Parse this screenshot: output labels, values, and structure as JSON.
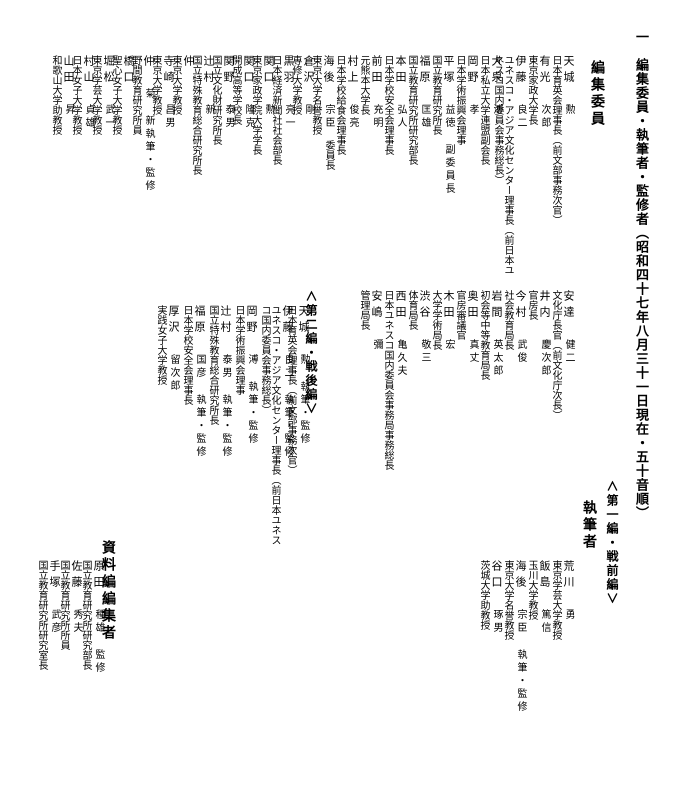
{
  "page_title": "一　編集委員・執筆者・監修者（昭和四十七年八月三十一日現在・五十音順）",
  "sections": {
    "editorial_board": {
      "header": "編集委員"
    },
    "authors": {
      "header": "執筆者"
    },
    "material_editors": {
      "header": "資料編編集者"
    }
  },
  "chair_suffix": "委員長",
  "sub_headers": {
    "prewar": "∧第一編・戦前編∨",
    "postwar": "∧第二編・戦後編∨"
  },
  "right_column": [
    {
      "surname": "天城",
      "given": "勲",
      "affil": "日本育英会理事長（前文部事務次官）"
    },
    {
      "surname": "有光",
      "given": "次郎",
      "affil": "東京家政大学長"
    },
    {
      "surname": "伊藤",
      "given": "良二",
      "affil": "ユネスコ・アジア文化センター理事長\n（前日本ユネスコ国内委員会事務総長）"
    },
    {
      "surname": "大泉",
      "given": "溥",
      "affil": "日本私立大学連盟副会長"
    },
    {
      "surname": "岡野",
      "given": "孝",
      "affil": "日本学術振興会理事"
    },
    {
      "surname": "平塚",
      "given": "益徳 副委員長",
      "affil": "国立教育研究所長"
    },
    {
      "surname": "福原",
      "given": "匡雄",
      "affil": "国立教育研究所研究部長"
    },
    {
      "surname": "本田",
      "given": "弘人",
      "affil": "日本学校安全会理事長"
    },
    {
      "surname": "前田",
      "given": "充明",
      "affil": "元熊本大学長"
    },
    {
      "surname": "村上",
      "given": "俊亮",
      "affil": "日本学校給食会理事長"
    }
  ],
  "right_column_lower": [
    {
      "surname": "安達",
      "given": "健二",
      "affil": "文化庁長官（前文化庁次長）"
    },
    {
      "surname": "井内",
      "given": "慶次郎",
      "affil": "官房長"
    },
    {
      "surname": "今村",
      "given": "武俊",
      "affil": "社会教育局長"
    },
    {
      "surname": "岩間",
      "given": "英太郎",
      "affil": "初会等中等教育局長"
    },
    {
      "surname": "奥田",
      "given": "真丈",
      "affil": "官房審議官"
    },
    {
      "surname": "木田",
      "given": "宏",
      "affil": "大学学術局長"
    },
    {
      "surname": "渋谷",
      "given": "敬三",
      "affil": "体育局長"
    },
    {
      "surname": "西田",
      "given": "亀久夫",
      "affil": "日本ユネスコ国内委員会事務局事務総長"
    },
    {
      "surname": "安嶋",
      "given": "彌",
      "affil": "管理局長"
    }
  ],
  "left_column": [
    {
      "surname": "海後",
      "given": "宗臣",
      "suffix": "委員長",
      "affil": "東京大学名誉教授"
    },
    {
      "surname": "倉沢",
      "given": "剛",
      "affil": "専修大学教授"
    },
    {
      "surname": "黒羽",
      "given": "亮一",
      "affil": "日本経済新聞社社会部長"
    },
    {
      "surname": "関口",
      "given": "勲",
      "affil": "東京家政学院大学学長"
    },
    {
      "surname": "関口",
      "given": "隆克",
      "affil": "開成高等学校長"
    },
    {
      "surname": "関野",
      "given": "泰男",
      "affil": "国立文化財研究所長"
    },
    {
      "surname": "辻村",
      "given": "新",
      "affil": "国立特殊教育総合研究所長"
    },
    {
      "surname": "仲",
      "given": "",
      "affil": "東京大学教授"
    },
    {
      "surname": "寺崎",
      "given": "昌男",
      "affil": "東京大学教授"
    },
    {
      "surname": "仲",
      "given": "菊 新執筆・監修",
      "affil": "野間教育研究所員"
    },
    {
      "surname": "橋口",
      "given": "",
      "affil": "聖心女子大学教授"
    },
    {
      "surname": "堀松",
      "given": "武一",
      "affil": "東京学芸大学教授"
    },
    {
      "surname": "村山",
      "given": "貞雄",
      "affil": "日本女子大学教授"
    },
    {
      "surname": "山田",
      "given": "昇",
      "affil": "和歌山大学助教授"
    }
  ],
  "left_column_lower": [
    {
      "surname": "天城",
      "given": "勲 執筆・監修",
      "affil": "日本育英会理事長（前文部事務次官）"
    },
    {
      "surname": "伊藤",
      "given": "良二 執筆・監修",
      "affil": "ユネスコ・アジア文化センター理事長\n（前日本ユネスコ国内委員会事務総長）"
    },
    {
      "surname": "岡野",
      "given": "溥 執筆・監修",
      "affil": "日本学術振興会理事"
    },
    {
      "surname": "辻村",
      "given": "泰男 執筆・監修",
      "affil": "国立特殊教育総合研究所長"
    },
    {
      "surname": "福原",
      "given": "国彦 執筆・監修",
      "affil": "日本学校安全会理事長"
    },
    {
      "surname": "厚沢",
      "given": "留次郎",
      "affil": "実践女子大学教授"
    }
  ],
  "authors_block": [
    {
      "surname": "荒川",
      "given": "勇",
      "affil": "東京学芸大学教授"
    },
    {
      "surname": "飯島",
      "given": "篤信",
      "affil": "玉川大学教授"
    },
    {
      "surname": "海後",
      "given": "宗臣 執筆・監修",
      "affil": "東京大学名誉教授"
    },
    {
      "surname": "谷口",
      "given": "琢男",
      "affil": "茨城大学助教授"
    }
  ],
  "material_block": [
    {
      "surname": "原田",
      "given": "種雄 監修",
      "affil": "国立教育研究所研究部長"
    },
    {
      "surname": "佐藤",
      "given": "秀夫",
      "affil": "国立教育研究所所員"
    },
    {
      "surname": "手塚",
      "given": "武彦",
      "affil": "国立教育研究所研究室長"
    }
  ]
}
